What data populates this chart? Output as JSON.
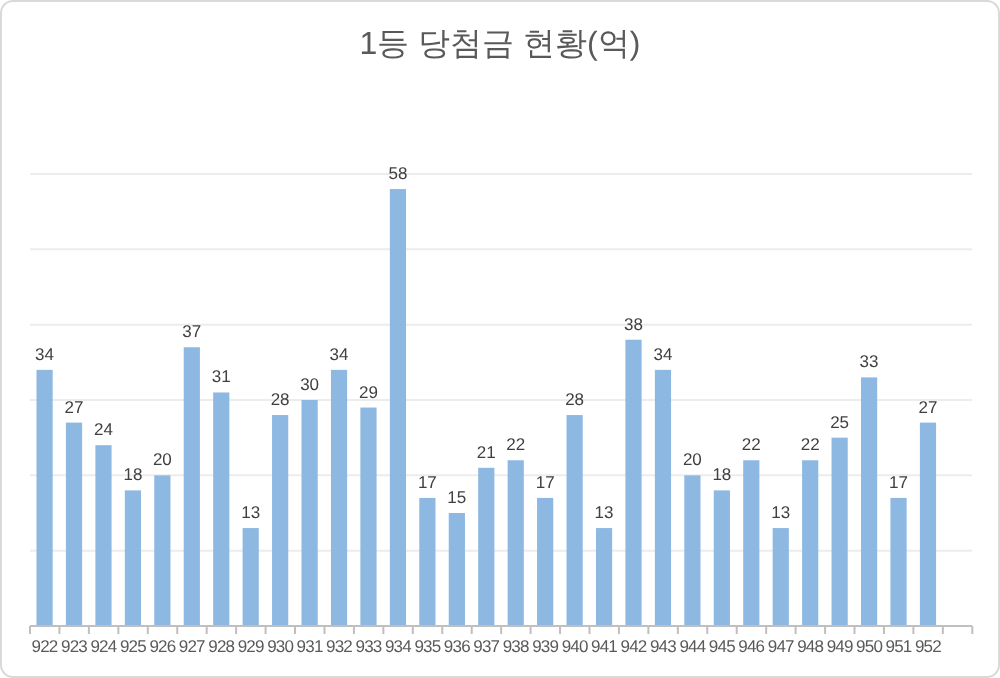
{
  "chart_data": {
    "type": "bar",
    "title": "1등 당첨금 현황(억)",
    "categories": [
      "922",
      "923",
      "924",
      "925",
      "926",
      "927",
      "928",
      "929",
      "930",
      "931",
      "932",
      "933",
      "934",
      "935",
      "936",
      "937",
      "938",
      "939",
      "940",
      "941",
      "942",
      "943",
      "944",
      "945",
      "946",
      "947",
      "948",
      "949",
      "950",
      "951",
      "952",
      null
    ],
    "values": [
      34,
      27,
      24,
      18,
      20,
      37,
      31,
      13,
      28,
      30,
      34,
      29,
      58,
      17,
      15,
      21,
      22,
      17,
      28,
      13,
      38,
      34,
      20,
      18,
      22,
      13,
      22,
      25,
      33,
      17,
      27,
      null
    ],
    "color": "#8db8e2",
    "ylim": [
      0,
      60
    ],
    "yticks": [
      {
        "value": 0,
        "label": null
      },
      {
        "value": 10,
        "label": null
      },
      {
        "value": 20,
        "label": null
      },
      {
        "value": 30,
        "label": null
      },
      {
        "value": 40,
        "label": null
      },
      {
        "value": 50,
        "label": null
      },
      {
        "value": 60,
        "label": null
      }
    ],
    "grid": "y",
    "tick_labels": "x",
    "data_labels": true
  }
}
